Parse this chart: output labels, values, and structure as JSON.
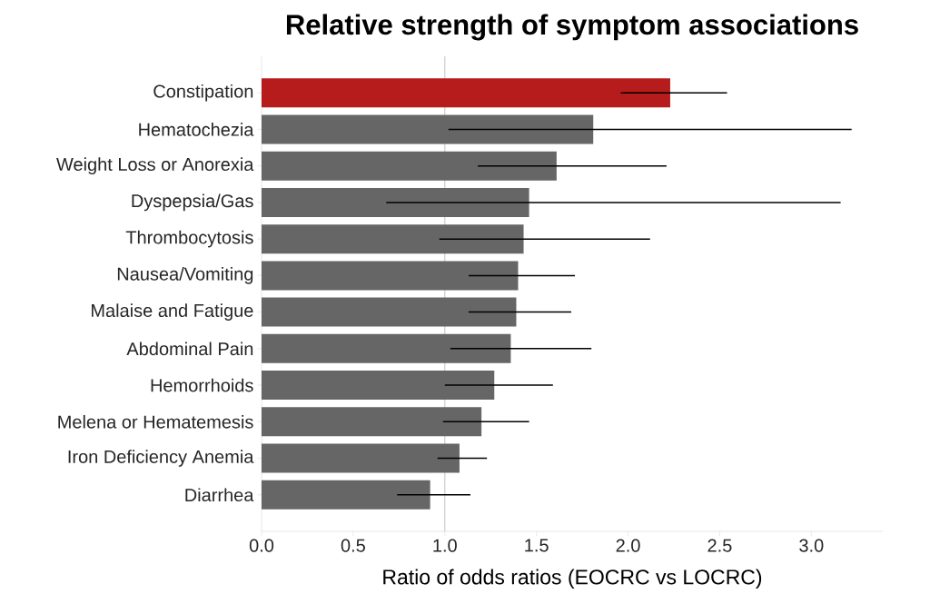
{
  "chart_data": {
    "type": "bar",
    "orientation": "horizontal",
    "title": "Relative strength of symptom associations",
    "xlabel": "Ratio of odds ratios (EOCRC vs LOCRC)",
    "categories": [
      "Constipation",
      "Hematochezia",
      "Weight Loss or Anorexia",
      "Dyspepsia/Gas",
      "Thrombocytosis",
      "Nausea/Vomiting",
      "Malaise and Fatigue",
      "Abdominal Pain",
      "Hemorrhoids",
      "Melena or Hematemesis",
      "Iron Deficiency Anemia",
      "Diarrhea"
    ],
    "values": [
      2.23,
      1.81,
      1.61,
      1.46,
      1.43,
      1.4,
      1.39,
      1.36,
      1.27,
      1.2,
      1.08,
      0.92
    ],
    "errors": [
      [
        1.96,
        2.54
      ],
      [
        1.02,
        3.22
      ],
      [
        1.18,
        2.21
      ],
      [
        0.68,
        3.16
      ],
      [
        0.97,
        2.12
      ],
      [
        1.13,
        1.71
      ],
      [
        1.13,
        1.69
      ],
      [
        1.03,
        1.8
      ],
      [
        1.0,
        1.59
      ],
      [
        0.99,
        1.46
      ],
      [
        0.96,
        1.23
      ],
      [
        0.74,
        1.14
      ]
    ],
    "colors": [
      "#b71c1c",
      "#666666",
      "#666666",
      "#666666",
      "#666666",
      "#666666",
      "#666666",
      "#666666",
      "#666666",
      "#666666",
      "#666666",
      "#666666"
    ],
    "xlim": [
      0,
      3.39
    ],
    "xticks": [
      {
        "value": 0,
        "label": "0.0"
      },
      {
        "value": 0.5,
        "label": "0.5"
      },
      {
        "value": 1,
        "label": "1.0"
      },
      {
        "value": 1.5,
        "label": "1.5"
      },
      {
        "value": 2,
        "label": "2.0"
      },
      {
        "value": 2.5,
        "label": "2.5"
      },
      {
        "value": 3,
        "label": "3.0"
      }
    ],
    "ref_lines": [
      {
        "axis": "x",
        "value": 1,
        "color": "#cccccc"
      }
    ]
  }
}
